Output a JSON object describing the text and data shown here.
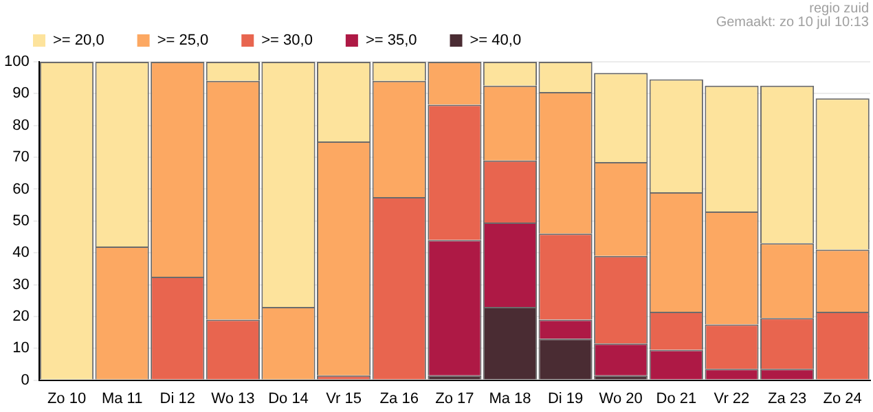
{
  "chart_data": {
    "type": "bar",
    "stacked": true,
    "categories": [
      "Zo 10",
      "Ma 11",
      "Di 12",
      "Wo 13",
      "Do 14",
      "Vr 15",
      "Za 16",
      "Zo 17",
      "Ma 18",
      "Di 19",
      "Wo 20",
      "Do 21",
      "Vr 22",
      "Za 23",
      "Zo 24"
    ],
    "series": [
      {
        "name": ">= 40,0",
        "color": "#4a2c33",
        "values": [
          0,
          0,
          0,
          0,
          0,
          0,
          0,
          1.5,
          23,
          13,
          1.5,
          0,
          0,
          0,
          0
        ]
      },
      {
        "name": ">= 35,0",
        "color": "#ae1945",
        "values": [
          0,
          0,
          0,
          0,
          0,
          0,
          0,
          42.5,
          26.5,
          6,
          10,
          9.5,
          3.5,
          3.5,
          0
        ]
      },
      {
        "name": ">= 30,0",
        "color": "#e8654f",
        "values": [
          0,
          0,
          32.5,
          19,
          0,
          1.5,
          57.5,
          42.5,
          19.5,
          27,
          27.5,
          12,
          14,
          16,
          21.5
        ]
      },
      {
        "name": ">= 25,0",
        "color": "#fca862",
        "values": [
          0,
          42,
          67.5,
          75,
          23,
          73.5,
          36.5,
          13.5,
          23.5,
          44.5,
          29.5,
          37.5,
          35.5,
          23.5,
          19.5
        ]
      },
      {
        "name": ">= 20,0",
        "color": "#fde39c",
        "values": [
          100,
          58,
          0,
          6,
          77,
          25,
          6,
          0,
          7.5,
          9.5,
          28,
          35.5,
          39.5,
          49.5,
          47.5
        ]
      }
    ],
    "ylim": [
      0,
      100
    ],
    "yticks": [
      0,
      10,
      20,
      30,
      40,
      50,
      60,
      70,
      80,
      90,
      100
    ],
    "grid": "y",
    "legend": "top left",
    "annotations": [
      "regio zuid",
      "Gemaakt: zo 10 jul 10:13"
    ]
  }
}
